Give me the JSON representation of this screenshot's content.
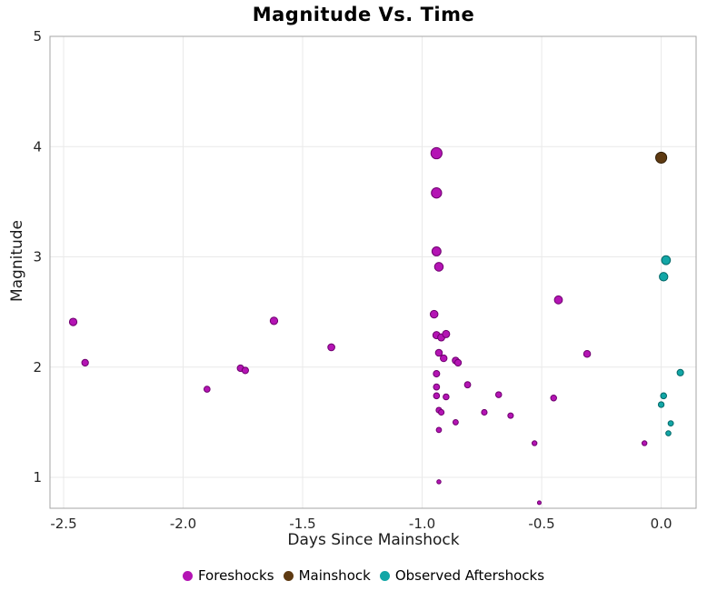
{
  "chart_data": {
    "type": "scatter",
    "title": "Magnitude Vs. Time",
    "xlabel": "Days Since Mainshock",
    "ylabel": "Magnitude",
    "xlim": [
      -2.557,
      0.146
    ],
    "ylim": [
      0.72,
      5.0
    ],
    "x_ticks": [
      -2.5,
      -2.0,
      -1.5,
      -1.0,
      -0.5,
      0.0
    ],
    "x_tick_labels": [
      "-2.5",
      "-2.0",
      "-1.5",
      "-1.0",
      "-0.5",
      "0.0"
    ],
    "y_ticks": [
      1,
      2,
      3,
      4,
      5
    ],
    "y_tick_labels": [
      "1",
      "2",
      "3",
      "4",
      "5"
    ],
    "grid": true,
    "grid_color": "#e9e9e9",
    "spine_color": "#a6a6a6",
    "tick_label_color": "#262626",
    "legend_position": "bottom",
    "marker_size_rule": {
      "radius_px_base": 1.0,
      "radius_px_per_magnitude": 1.3
    },
    "series": [
      {
        "name": "Foreshocks",
        "color": "#b414b4",
        "edge_color": "#6e006e",
        "points": [
          [
            -2.46,
            2.41
          ],
          [
            -2.41,
            2.04
          ],
          [
            -1.9,
            1.8
          ],
          [
            -1.76,
            1.99
          ],
          [
            -1.74,
            1.97
          ],
          [
            -1.62,
            2.42
          ],
          [
            -1.38,
            2.18
          ],
          [
            -0.94,
            3.94
          ],
          [
            -0.94,
            3.58
          ],
          [
            -0.94,
            3.05
          ],
          [
            -0.93,
            2.91
          ],
          [
            -0.95,
            2.48
          ],
          [
            -0.94,
            2.29
          ],
          [
            -0.92,
            2.27
          ],
          [
            -0.9,
            2.3
          ],
          [
            -0.93,
            2.13
          ],
          [
            -0.91,
            2.08
          ],
          [
            -0.86,
            2.06
          ],
          [
            -0.85,
            2.04
          ],
          [
            -0.94,
            1.94
          ],
          [
            -0.94,
            1.82
          ],
          [
            -0.81,
            1.84
          ],
          [
            -0.94,
            1.74
          ],
          [
            -0.9,
            1.73
          ],
          [
            -0.93,
            1.61
          ],
          [
            -0.92,
            1.59
          ],
          [
            -0.86,
            1.5
          ],
          [
            -0.93,
            1.43
          ],
          [
            -0.93,
            0.96
          ],
          [
            -0.74,
            1.59
          ],
          [
            -0.68,
            1.75
          ],
          [
            -0.63,
            1.56
          ],
          [
            -0.53,
            1.31
          ],
          [
            -0.51,
            0.77
          ],
          [
            -0.45,
            1.72
          ],
          [
            -0.43,
            2.61
          ],
          [
            -0.31,
            2.12
          ],
          [
            -0.07,
            1.31
          ]
        ]
      },
      {
        "name": "Mainshock",
        "color": "#5e3a12",
        "edge_color": "#301d06",
        "points": [
          [
            0.0,
            3.9
          ]
        ]
      },
      {
        "name": "Observed Aftershocks",
        "color": "#12a6a6",
        "edge_color": "#046868",
        "points": [
          [
            0.02,
            2.97
          ],
          [
            0.01,
            2.82
          ],
          [
            0.08,
            1.95
          ],
          [
            0.01,
            1.74
          ],
          [
            0.0,
            1.66
          ],
          [
            0.04,
            1.49
          ],
          [
            0.03,
            1.4
          ]
        ]
      }
    ]
  }
}
